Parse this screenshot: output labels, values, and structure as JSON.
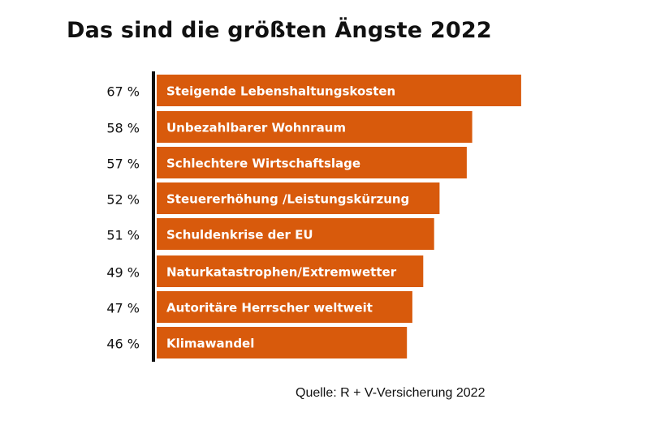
{
  "title": "Das sind die größten Ängste 2022",
  "source": "Quelle: R + V-Versicherung 2022",
  "colors": {
    "bar": "#d85a0c",
    "bar_text": "#ffffff",
    "axis": "#111111",
    "text": "#111111"
  },
  "chart_data": {
    "type": "bar",
    "orientation": "horizontal",
    "title": "Das sind die größten Ängste 2022",
    "categories": [
      "Steigende Lebenshaltungskosten",
      "Unbezahlbarer Wohnraum",
      "Schlechtere Wirtschaftslage",
      "Steuererhöhung /Leistungskürzung",
      "Schuldenkrise der EU",
      "Naturkatastrophen/Extremwetter",
      "Autoritäre Herrscher weltweit",
      "Klimawandel"
    ],
    "values": [
      67,
      58,
      57,
      52,
      51,
      49,
      47,
      46
    ],
    "value_labels": [
      "67 %",
      "58 %",
      "57 %",
      "52 %",
      "51 %",
      "49 %",
      "47 %",
      "46 %"
    ],
    "unit": "%",
    "grid": false,
    "legend": "none"
  }
}
